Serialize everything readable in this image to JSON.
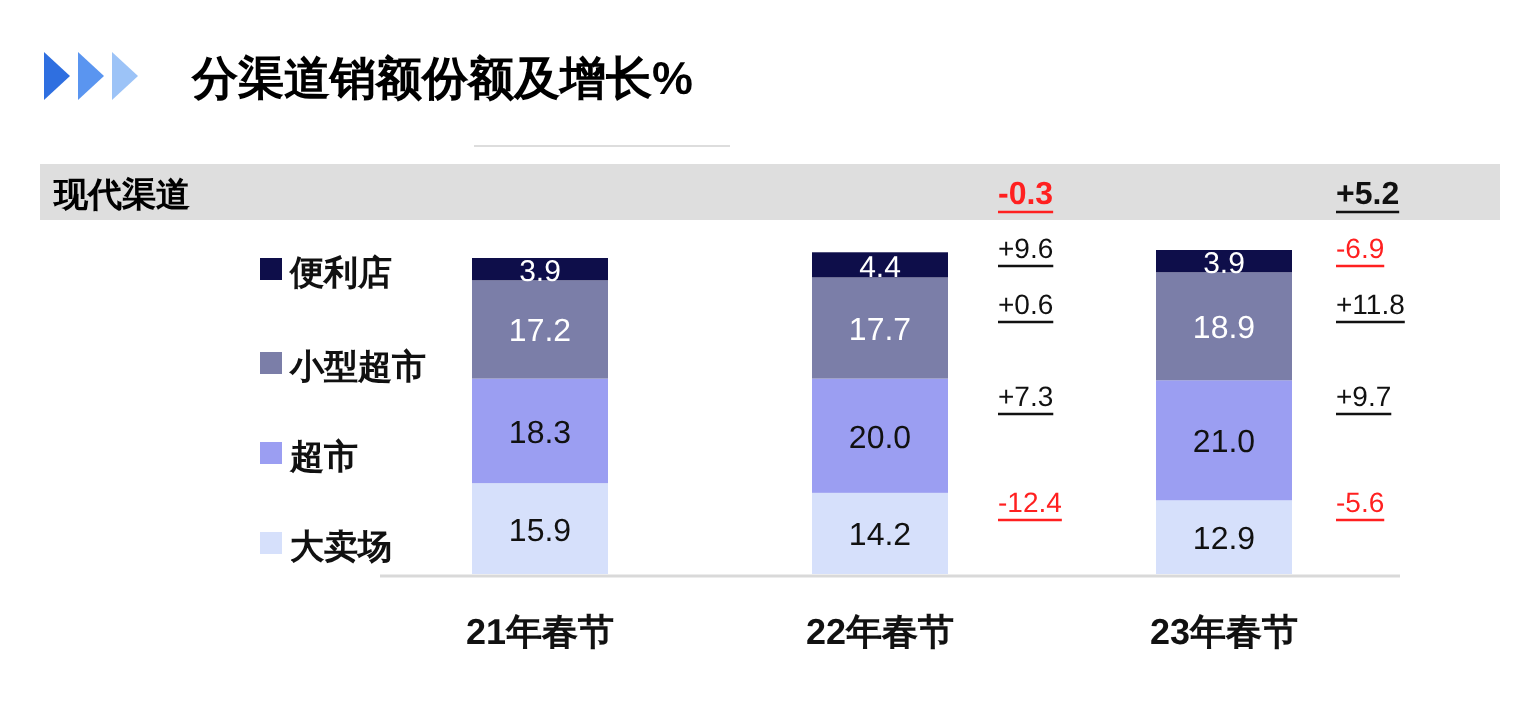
{
  "chart_data": {
    "type": "bar",
    "stacked": true,
    "title": "分渠道销额份额及增长%",
    "subtitle": "现代渠道",
    "categories": [
      "21年春节",
      "22年春节",
      "23年春节"
    ],
    "series": [
      {
        "name": "大卖场",
        "color": "#d6e0fb",
        "values": [
          15.9,
          14.2,
          12.9
        ],
        "value_labels": [
          "15.9",
          "14.2",
          "12.9"
        ]
      },
      {
        "name": "超市",
        "color": "#9b9ef2",
        "values": [
          18.3,
          20.0,
          21.0
        ],
        "value_labels": [
          "18.3",
          "20.0",
          "21.0"
        ]
      },
      {
        "name": "小型超市",
        "color": "#7b7ea8",
        "values": [
          17.2,
          17.7,
          18.9
        ],
        "value_labels": [
          "17.2",
          "17.7",
          "18.9"
        ]
      },
      {
        "name": "便利店",
        "color": "#0e0e4a",
        "values": [
          3.9,
          4.4,
          3.9
        ],
        "value_labels": [
          "3.9",
          "4.4",
          "3.9"
        ]
      }
    ],
    "legend": "left",
    "annotations": [
      "-0.3",
      "+5.2",
      "+9.6",
      "+0.6",
      "+7.3",
      "-12.4",
      "-6.9",
      "+11.8",
      "+9.7",
      "-5.6"
    ]
  }
}
